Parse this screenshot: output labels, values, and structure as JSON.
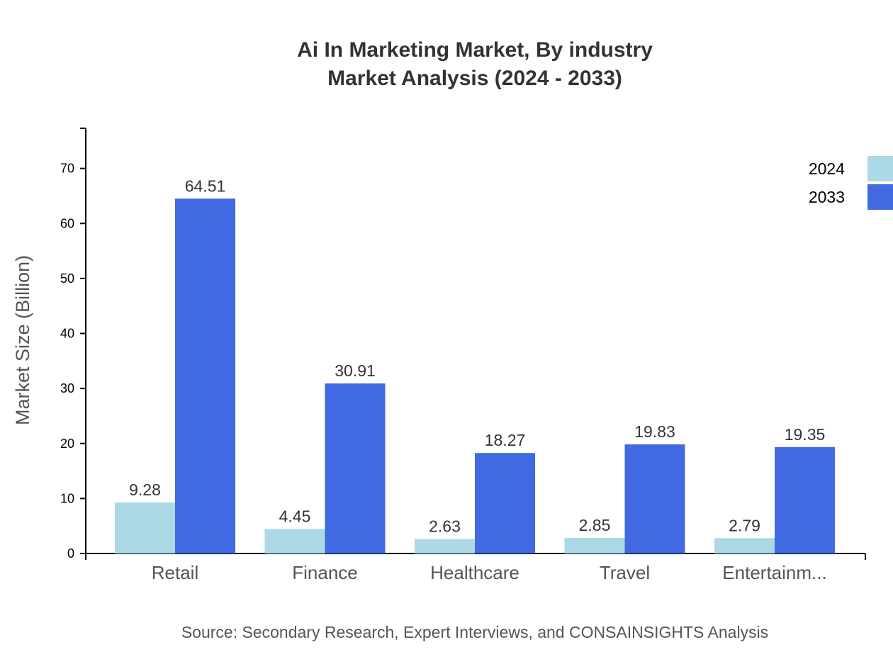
{
  "chart_data": {
    "type": "bar",
    "title": "Ai In Marketing Market, By industry",
    "subtitle": "Market Analysis (2024 - 2033)",
    "ylabel": "Market Size (Billion)",
    "xlabel": "",
    "categories": [
      "Retail",
      "Finance",
      "Healthcare",
      "Travel",
      "Entertainm..."
    ],
    "series": [
      {
        "name": "2024",
        "color": "#add8e6",
        "values": [
          9.28,
          4.45,
          2.63,
          2.85,
          2.79
        ]
      },
      {
        "name": "2033",
        "color": "#4169e1",
        "values": [
          64.51,
          30.91,
          18.27,
          19.83,
          19.35
        ]
      }
    ],
    "ylim": [
      0,
      77.3
    ],
    "yticks": [
      0,
      10,
      20,
      30,
      40,
      50,
      60,
      70
    ],
    "grid": false,
    "legend": "top-right",
    "source": "Source: Secondary Research, Expert Interviews, and CONSAINSIGHTS Analysis"
  }
}
